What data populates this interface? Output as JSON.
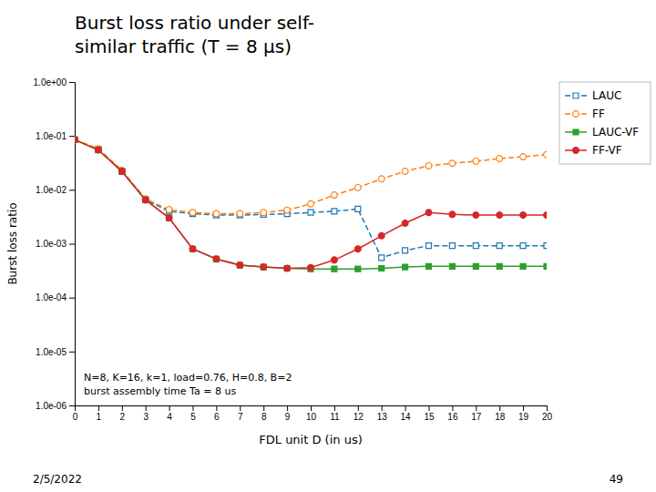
{
  "chart_data": {
    "type": "line",
    "title": "Burst loss ratio under self-\nsimilar traffic (T = 8 µs)",
    "x_label": "FDL unit D (in us)",
    "y_label": "Burst loss ratio",
    "annotations": [
      "N=8, K=16, k=1, load=0.76, H=0.8, B=2\nburst assembly time Ta = 8 us",
      "2/5/2022",
      "49"
    ],
    "x": [
      0,
      1,
      2,
      3,
      4,
      5,
      6,
      7,
      8,
      9,
      10,
      11,
      12,
      13,
      14,
      15,
      16,
      17,
      18,
      19,
      20
    ],
    "series": [
      {
        "name": "LAUC",
        "marker": "square-open",
        "line_style": "dashed",
        "values": [
          0.085,
          0.056,
          0.022,
          0.0065,
          0.004,
          0.0036,
          0.0034,
          0.0034,
          0.0035,
          0.0036,
          0.0038,
          0.004,
          0.0044,
          0.00055,
          0.00075,
          0.00092,
          0.00092,
          0.00092,
          0.00092,
          0.00092,
          0.00092
        ]
      },
      {
        "name": "FF",
        "marker": "circle-open",
        "line_style": "dashed",
        "values": [
          0.085,
          0.058,
          0.023,
          0.0068,
          0.0043,
          0.0038,
          0.0036,
          0.0036,
          0.0038,
          0.0042,
          0.0055,
          0.008,
          0.011,
          0.016,
          0.022,
          0.028,
          0.031,
          0.034,
          0.038,
          0.041,
          0.045
        ]
      },
      {
        "name": "LAUC-VF",
        "marker": "square",
        "line_style": "solid",
        "values": [
          0.085,
          0.055,
          0.022,
          0.0065,
          0.003,
          0.0008,
          0.00052,
          0.0004,
          0.00037,
          0.00035,
          0.00034,
          0.00034,
          0.00034,
          0.00035,
          0.00037,
          0.00038,
          0.00038,
          0.00038,
          0.00038,
          0.00038,
          0.00038
        ]
      },
      {
        "name": "FF-VF",
        "marker": "circle",
        "line_style": "solid",
        "values": [
          0.085,
          0.055,
          0.022,
          0.0065,
          0.003,
          0.0008,
          0.00052,
          0.0004,
          0.00037,
          0.00035,
          0.00036,
          0.0005,
          0.0008,
          0.0014,
          0.0024,
          0.0038,
          0.0035,
          0.0034,
          0.0034,
          0.0034,
          0.0034
        ]
      }
    ],
    "log": "y",
    "xlim": [
      0,
      20
    ],
    "xticks": [
      0,
      1,
      2,
      3,
      4,
      5,
      6,
      7,
      8,
      9,
      10,
      11,
      12,
      13,
      14,
      15,
      16,
      17,
      18,
      19,
      20
    ],
    "ylim": [
      1e-06,
      1
    ],
    "yticks": [
      {
        "value": 1e-06,
        "label": "1.0e-06"
      },
      {
        "value": 1e-05,
        "label": "1.0e-05"
      },
      {
        "value": 0.0001,
        "label": "1.0e-04"
      },
      {
        "value": 0.001,
        "label": "1.0e-03"
      },
      {
        "value": 0.01,
        "label": "1.0e-02"
      },
      {
        "value": 0.1,
        "label": "1.0e-01"
      },
      {
        "value": 1,
        "label": "1.0e+00"
      }
    ],
    "grid": false,
    "legend": "upper right"
  }
}
